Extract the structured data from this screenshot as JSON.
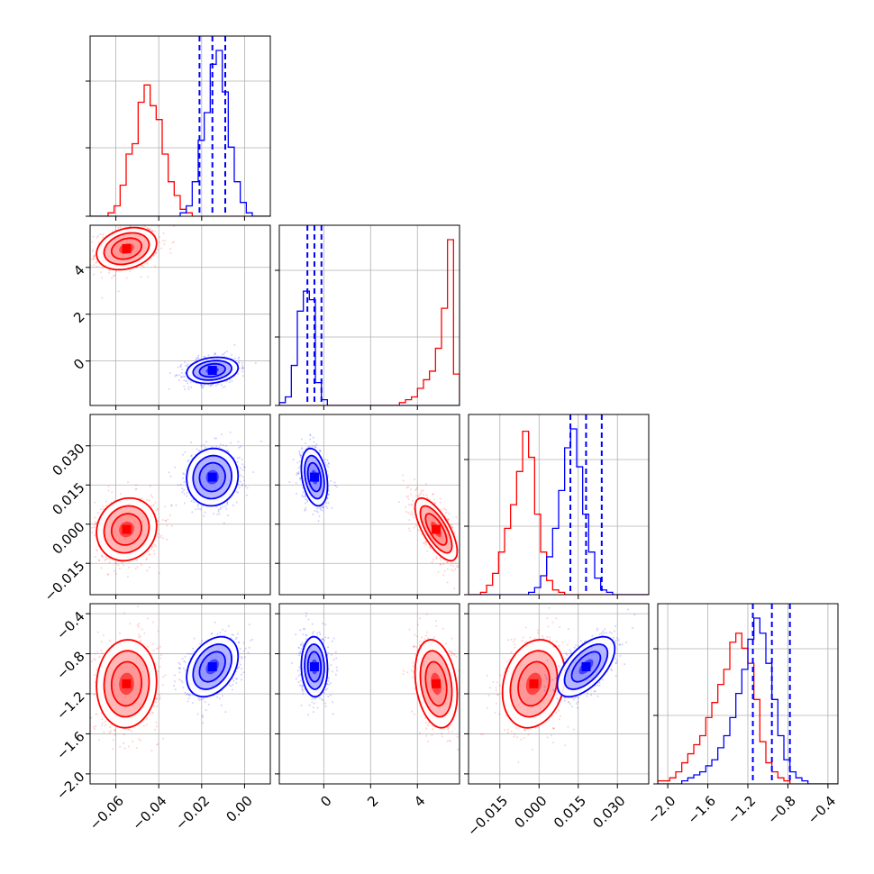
{
  "chart_data": {
    "type": "corner",
    "colors": {
      "red": "#ff0000",
      "blue": "#0000ff",
      "grid": "#b0b0b0",
      "axis": "#000000"
    },
    "grid": true,
    "title": "",
    "series": [
      {
        "color": "red",
        "means": [
          -0.055,
          4.8,
          -0.002,
          -1.1
        ],
        "sigmas": [
          0.007,
          0.45,
          0.006,
          0.22
        ],
        "corr": [
          [
            0,
            1,
            0.25
          ],
          [
            0,
            2,
            0.1
          ],
          [
            0,
            3,
            0.05
          ],
          [
            1,
            2,
            -0.7
          ],
          [
            1,
            3,
            -0.25
          ],
          [
            2,
            3,
            0.2
          ]
        ],
        "quantile_lines": false
      },
      {
        "color": "blue",
        "means": [
          -0.015,
          -0.4,
          0.018,
          -0.93
        ],
        "sigmas": [
          0.006,
          0.28,
          0.0055,
          0.15
        ],
        "corr": [
          [
            0,
            1,
            0.2
          ],
          [
            0,
            2,
            0.05
          ],
          [
            0,
            3,
            0.35
          ],
          [
            1,
            2,
            -0.3
          ],
          [
            1,
            3,
            -0.05
          ],
          [
            2,
            3,
            0.6
          ]
        ],
        "quantiles": [
          [
            -0.021,
            -0.015,
            -0.009
          ],
          [
            -0.7,
            -0.4,
            -0.1
          ],
          [
            0.012,
            0.018,
            0.024
          ],
          [
            -1.15,
            -0.96,
            -0.78
          ]
        ],
        "quantile_lines": true
      }
    ],
    "params": [
      {
        "lim": [
          -0.072,
          0.012
        ],
        "ticks": [
          -0.06,
          -0.04,
          -0.02,
          0.0
        ],
        "tick_labels": [
          "−0.06",
          "−0.04",
          "−0.02",
          "0.00"
        ]
      },
      {
        "lim": [
          -1.9,
          5.8
        ],
        "ticks": [
          0,
          2,
          4
        ],
        "tick_labels": [
          "0",
          "2",
          "4"
        ]
      },
      {
        "lim": [
          -0.027,
          0.042
        ],
        "ticks": [
          -0.015,
          0.0,
          0.015,
          0.03
        ],
        "tick_labels": [
          "−0.015",
          "0.000",
          "0.015",
          "0.030"
        ]
      },
      {
        "lim": [
          -2.1,
          -0.3
        ],
        "ticks": [
          -2.0,
          -1.6,
          -1.2,
          -0.8,
          -0.4
        ],
        "tick_labels": [
          "−2.0",
          "−1.6",
          "−1.2",
          "−0.8",
          "−0.4"
        ]
      }
    ],
    "histograms": {
      "0": {
        "bins": [
          -0.072,
          0.012,
          30
        ],
        "red": [
          0,
          0,
          0,
          1,
          3,
          9,
          18,
          21,
          33,
          38,
          32,
          28,
          18,
          10,
          6,
          2,
          1,
          0,
          0,
          0,
          0,
          0,
          0,
          0,
          0,
          0,
          0,
          0,
          0,
          0
        ],
        "blue": [
          0,
          0,
          0,
          0,
          0,
          0,
          0,
          0,
          0,
          0,
          0,
          0,
          0,
          0,
          0,
          1,
          3,
          10,
          22,
          30,
          44,
          48,
          36,
          20,
          10,
          4,
          1,
          0,
          0,
          0
        ]
      },
      "1": {
        "bins": [
          -1.9,
          5.8,
          30
        ],
        "red": [
          0,
          0,
          0,
          0,
          0,
          0,
          0,
          0,
          0,
          0,
          0,
          0,
          0,
          0,
          0,
          0,
          0,
          0,
          0,
          0,
          1,
          2,
          3,
          6,
          9,
          12,
          20,
          34,
          58,
          11
        ],
        "blue": [
          1,
          3,
          14,
          33,
          40,
          37,
          8,
          2,
          0,
          0,
          0,
          0,
          0,
          0,
          0,
          0,
          0,
          0,
          0,
          0,
          0,
          0,
          0,
          0,
          0,
          0,
          0,
          0,
          0,
          0
        ]
      },
      "2": {
        "bins": [
          -0.027,
          0.042,
          30
        ],
        "red": [
          0,
          0,
          1,
          4,
          9,
          18,
          28,
          38,
          52,
          69,
          58,
          34,
          18,
          6,
          2,
          1,
          0,
          0,
          0,
          0,
          0,
          0,
          0,
          0,
          0,
          0,
          0,
          0,
          0,
          0
        ],
        "blue": [
          0,
          0,
          0,
          0,
          0,
          0,
          0,
          0,
          0,
          0,
          1,
          3,
          8,
          16,
          28,
          44,
          62,
          70,
          54,
          34,
          18,
          7,
          2,
          1,
          0,
          0,
          0,
          0,
          0,
          0
        ]
      },
      "3": {
        "bins": [
          -2.1,
          -0.3,
          30
        ],
        "red": [
          1,
          1,
          2,
          4,
          7,
          10,
          13,
          16,
          22,
          27,
          33,
          38,
          47,
          50,
          45,
          40,
          28,
          14,
          7,
          4,
          2,
          1,
          0,
          0,
          0,
          0,
          0,
          0,
          0,
          0
        ],
        "blue": [
          0,
          0,
          0,
          0,
          1,
          2,
          3,
          4,
          6,
          8,
          12,
          16,
          22,
          30,
          38,
          48,
          55,
          50,
          40,
          28,
          16,
          8,
          4,
          2,
          1,
          0,
          0,
          0,
          0,
          0
        ]
      }
    }
  }
}
